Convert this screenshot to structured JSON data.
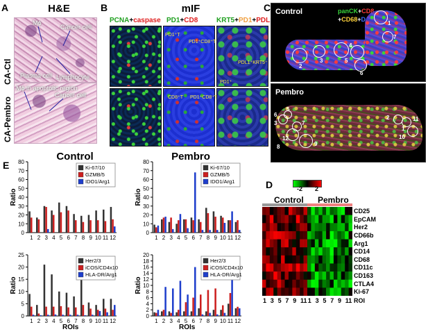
{
  "panelA": {
    "letter": "A",
    "title": "H&E",
    "row1_label": "CA-Ctl",
    "row2_label": "CA-Pembro",
    "ann_mphi1": "Mϕ",
    "ann_cancer1": "Cancer cell",
    "ann_plasma": "Plasma cell",
    "ann_lymph": "Lymphocyte",
    "ann_mphi2": "Mϕ in apoptotic region",
    "ann_cancer2": "Cancer cell"
  },
  "panelB": {
    "letter": "B",
    "title": "mIF",
    "col1": [
      {
        "t": "PCNA",
        "c": "#20a020"
      },
      {
        "t": "+",
        "c": "#000000"
      },
      {
        "t": "caspase",
        "c": "#e02020"
      }
    ],
    "col2": [
      {
        "t": "PD1",
        "c": "#20a020"
      },
      {
        "t": "+",
        "c": "#000000"
      },
      {
        "t": "CD8",
        "c": "#e02020"
      }
    ],
    "col3": [
      {
        "t": "KRT5",
        "c": "#20a020"
      },
      {
        "t": "+",
        "c": "#000000"
      },
      {
        "t": "PD1",
        "c": "#f0a040"
      },
      {
        "t": "+",
        "c": "#000000"
      },
      {
        "t": "PDL1",
        "c": "#e02020"
      }
    ],
    "ann_pd1t": "PD1⁺T",
    "ann_pd1cd8": "PD1⁺CD8⁺T",
    "ann_pdl1krt5": "PDL1⁺KRT5⁺",
    "ann_pd1": "PD1⁺",
    "ann_cd8t": "CD8⁺T",
    "ann_pd1cd8_2": "PD1⁺CD8⁺T"
  },
  "panelC": {
    "letter": "C",
    "control_label": "Control",
    "pembro_label": "Pembro",
    "legend_line1": [
      {
        "t": "panCK",
        "c": "#39d33b"
      },
      {
        "t": "+",
        "c": "#ffffff"
      },
      {
        "t": "CD8",
        "c": "#ff3b3b"
      }
    ],
    "legend_line2": [
      {
        "t": "+",
        "c": "#ffffff"
      },
      {
        "t": "CD68",
        "c": "#ffd23b"
      },
      {
        "t": "+",
        "c": "#ffffff"
      },
      {
        "t": "DAPI",
        "c": "#3b6bff"
      }
    ],
    "control_rois": [
      "1",
      "2",
      "3",
      "4",
      "5",
      "6",
      "7"
    ],
    "pembro_rois": [
      "3",
      "5",
      "6",
      "7",
      "12",
      "8",
      "9",
      "2",
      "11",
      "1",
      "10"
    ]
  },
  "panelD": {
    "letter": "D",
    "group_control": "Control",
    "group_pembro": "Pembro",
    "scale_min": "-2",
    "scale_mid": "0",
    "scale_max": "2",
    "markers": [
      "CD25",
      "EpCAM",
      "Her2",
      "CD66b",
      "Arg1",
      "CD14",
      "CD68",
      "CD11c",
      "CD163",
      "CTLA4",
      "Ki-67"
    ],
    "roi_ticks": [
      "1",
      "3",
      "5",
      "7",
      "9",
      "11",
      "1",
      "3",
      "5",
      "7",
      "9",
      "11"
    ],
    "roi_label": "ROI",
    "colors": {
      "control_bar": "#999999",
      "pembro_bar": "#f08080"
    }
  },
  "panelE": {
    "letter": "E",
    "title_control": "Control",
    "title_pembro": "Pembro",
    "ylabel": "Ratio",
    "xlabel": "ROIs"
  },
  "chart_data": [
    {
      "type": "bar",
      "title": "Control",
      "xlabel": "ROIs",
      "ylabel": "Ratio",
      "ylim": [
        0,
        80
      ],
      "yticks": [
        0,
        10,
        20,
        30,
        40,
        50,
        60,
        70,
        80
      ],
      "categories": [
        "1",
        "2",
        "3",
        "4",
        "5",
        "6",
        "7",
        "8",
        "9",
        "10",
        "11",
        "12"
      ],
      "series": [
        {
          "name": "Ki-67/10",
          "color": "#333333",
          "values": [
            24,
            17,
            30,
            25,
            34,
            30,
            21,
            19,
            20,
            25,
            26,
            29
          ]
        },
        {
          "name": "GZMB/5",
          "color": "#cc1f1f",
          "values": [
            17,
            15,
            29,
            20,
            23,
            25,
            14,
            12,
            14,
            14,
            13,
            15
          ]
        },
        {
          "name": "IDO1/Arg1",
          "color": "#1f3fcc",
          "values": [
            0,
            0,
            4,
            0,
            0,
            0,
            0,
            0,
            0,
            0,
            0,
            7
          ]
        }
      ],
      "legend": "top-right"
    },
    {
      "type": "bar",
      "title": "Pembro",
      "xlabel": "ROIs",
      "ylabel": "Ratio",
      "ylim": [
        0,
        80
      ],
      "yticks": [
        0,
        10,
        20,
        30,
        40,
        50,
        60,
        70,
        80
      ],
      "categories": [
        "1",
        "2",
        "3",
        "4",
        "5",
        "6",
        "7",
        "8",
        "9",
        "10",
        "11",
        "12"
      ],
      "series": [
        {
          "name": "Ki-67/10",
          "color": "#333333",
          "values": [
            9,
            15,
            12,
            10,
            15,
            17,
            15,
            28,
            24,
            19,
            14,
            12
          ]
        },
        {
          "name": "GZMB/5",
          "color": "#cc1f1f",
          "values": [
            6,
            17,
            17,
            14,
            15,
            14,
            12,
            22,
            18,
            17,
            14,
            14
          ]
        },
        {
          "name": "IDO1/Arg1",
          "color": "#1f3fcc",
          "values": [
            8,
            18,
            4,
            21,
            5,
            68,
            3,
            3,
            3,
            11,
            24,
            3
          ]
        }
      ],
      "legend": "top-right"
    },
    {
      "type": "bar",
      "xlabel": "ROIs",
      "ylabel": "Ratio",
      "ylim": [
        0,
        25
      ],
      "yticks": [
        0,
        5,
        10,
        15,
        20,
        25
      ],
      "categories": [
        "1",
        "2",
        "3",
        "4",
        "5",
        "6",
        "7",
        "8",
        "9",
        "10",
        "11",
        "12"
      ],
      "series": [
        {
          "name": "Her2/3",
          "color": "#333333",
          "values": [
            9,
            4.5,
            21,
            17,
            10,
            9.5,
            8,
            18,
            5.5,
            4.5,
            7,
            7
          ]
        },
        {
          "name": "iCOS/CD4x10",
          "color": "#cc1f1f",
          "values": [
            3.8,
            1,
            3.8,
            3.8,
            4,
            3.5,
            3.5,
            4.5,
            3,
            2.5,
            3,
            2.5
          ]
        },
        {
          "name": "HLA-DR/Arg1",
          "color": "#1f3fcc",
          "values": [
            0.5,
            0.3,
            0.5,
            0.6,
            0.5,
            0.5,
            0.5,
            0.3,
            0.5,
            2,
            1.5,
            4.5
          ]
        }
      ],
      "legend": "top-right"
    },
    {
      "type": "bar",
      "xlabel": "ROIs",
      "ylabel": "Ratio",
      "ylim": [
        0,
        20
      ],
      "yticks": [
        0,
        2,
        4,
        6,
        8,
        10,
        12,
        14,
        16,
        18,
        20
      ],
      "categories": [
        "1",
        "2",
        "3",
        "4",
        "5",
        "6",
        "7",
        "8",
        "9",
        "10",
        "11",
        "12"
      ],
      "series": [
        {
          "name": "Her2/3",
          "color": "#333333",
          "values": [
            1.2,
            1.5,
            1.5,
            1.2,
            1.5,
            1.5,
            2.5,
            1.5,
            2,
            2,
            4,
            2.5
          ]
        },
        {
          "name": "iCOS/CD4x10",
          "color": "#cc1f1f",
          "values": [
            1,
            2,
            1,
            2,
            4.5,
            6,
            7,
            8.5,
            9,
            3.5,
            7.5,
            3
          ]
        },
        {
          "name": "HLA-DR/Arg1",
          "color": "#1f3fcc",
          "values": [
            2,
            9.5,
            9,
            11.5,
            7,
            16,
            0.5,
            1,
            0.5,
            1,
            15.5,
            2.5
          ]
        }
      ],
      "legend": "top-right"
    }
  ]
}
